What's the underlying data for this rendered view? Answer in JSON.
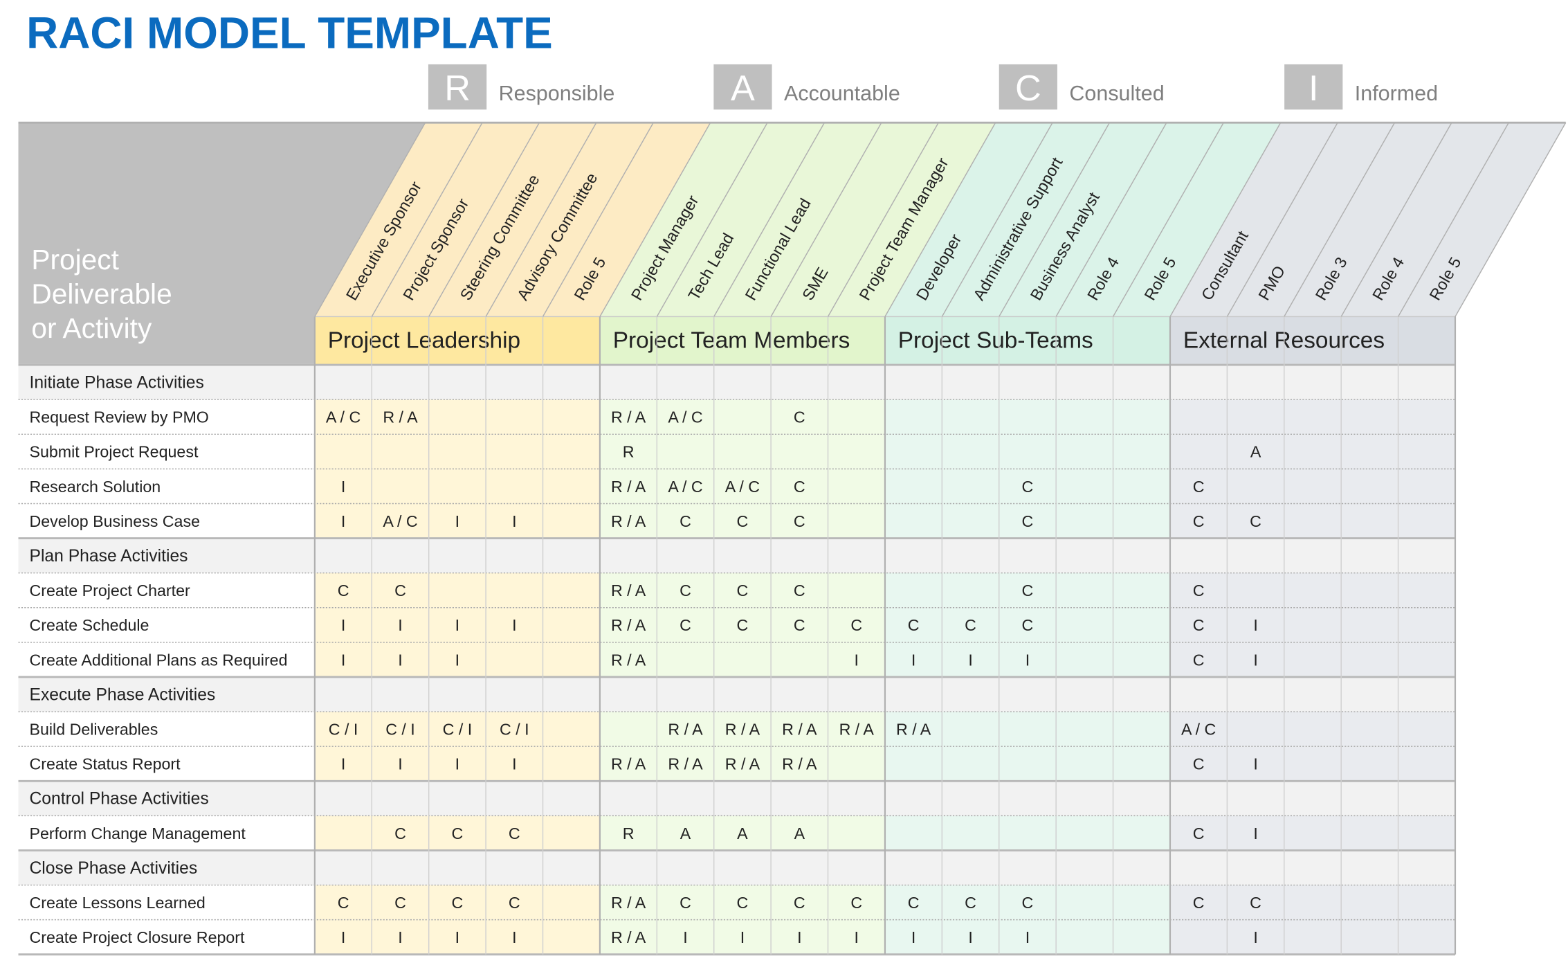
{
  "title": "RACI MODEL TEMPLATE",
  "legend": [
    {
      "letter": "R",
      "label": "Responsible"
    },
    {
      "letter": "A",
      "label": "Accountable"
    },
    {
      "letter": "C",
      "label": "Consulted"
    },
    {
      "letter": "I",
      "label": "Informed"
    }
  ],
  "header_label": [
    "Project",
    "Deliverable",
    "or Activity"
  ],
  "groups": [
    {
      "name": "Project Leadership",
      "roles": [
        "Executive Sponsor",
        "Project Sponsor",
        "Steering Committee",
        "Advisory Committee",
        "Role 5"
      ]
    },
    {
      "name": "Project Team Members",
      "roles": [
        "Project Manager",
        "Tech Lead",
        "Functional Lead",
        "SME",
        "Project Team Manager"
      ]
    },
    {
      "name": "Project Sub-Teams",
      "roles": [
        "Developer",
        "Administrative Support",
        "Business Analyst",
        "Role 4",
        "Role 5"
      ]
    },
    {
      "name": "External Resources",
      "roles": [
        "Consultant",
        "PMO",
        "Role 3",
        "Role 4",
        "Role 5"
      ]
    }
  ],
  "sections": [
    {
      "name": "Initiate Phase Activities",
      "rows": [
        {
          "task": "Request Review by PMO",
          "cells": [
            "A / C",
            "R / A",
            null,
            null,
            null,
            "R / A",
            "A / C",
            null,
            "C",
            null,
            null,
            null,
            null,
            null,
            null,
            null,
            null,
            null,
            null,
            null
          ]
        },
        {
          "task": "Submit Project Request",
          "cells": [
            null,
            null,
            null,
            null,
            null,
            "R",
            null,
            null,
            null,
            null,
            null,
            null,
            null,
            null,
            null,
            null,
            "A",
            null,
            null,
            null
          ]
        },
        {
          "task": "Research Solution",
          "cells": [
            "I",
            null,
            null,
            null,
            null,
            "R / A",
            "A / C",
            "A / C",
            "C",
            null,
            null,
            null,
            "C",
            null,
            null,
            "C",
            null,
            null,
            null,
            null
          ]
        },
        {
          "task": "Develop Business Case",
          "cells": [
            "I",
            "A / C",
            "I",
            "I",
            null,
            "R / A",
            "C",
            "C",
            "C",
            null,
            null,
            null,
            "C",
            null,
            null,
            "C",
            "C",
            null,
            null,
            null
          ]
        }
      ]
    },
    {
      "name": "Plan Phase Activities",
      "rows": [
        {
          "task": "Create Project Charter",
          "cells": [
            "C",
            "C",
            null,
            null,
            null,
            "R / A",
            "C",
            "C",
            "C",
            null,
            null,
            null,
            "C",
            null,
            null,
            "C",
            null,
            null,
            null,
            null
          ]
        },
        {
          "task": "Create Schedule",
          "cells": [
            "I",
            "I",
            "I",
            "I",
            null,
            "R / A",
            "C",
            "C",
            "C",
            "C",
            "C",
            "C",
            "C",
            null,
            null,
            "C",
            "I",
            null,
            null,
            null
          ]
        },
        {
          "task": "Create Additional Plans as Required",
          "cells": [
            "I",
            "I",
            "I",
            null,
            null,
            "R / A",
            null,
            null,
            null,
            "I",
            "I",
            "I",
            "I",
            null,
            null,
            "C",
            "I",
            null,
            null,
            null
          ]
        }
      ]
    },
    {
      "name": "Execute Phase Activities",
      "rows": [
        {
          "task": "Build Deliverables",
          "cells": [
            "C / I",
            "C / I",
            "C / I",
            "C / I",
            null,
            null,
            "R / A",
            "R / A",
            "R / A",
            "R / A",
            "R / A",
            null,
            null,
            null,
            null,
            "A / C",
            null,
            null,
            null,
            null
          ]
        },
        {
          "task": "Create Status Report",
          "cells": [
            "I",
            "I",
            "I",
            "I",
            null,
            "R / A",
            "R / A",
            "R / A",
            "R / A",
            null,
            null,
            null,
            null,
            null,
            null,
            "C",
            "I",
            null,
            null,
            null
          ]
        }
      ]
    },
    {
      "name": "Control Phase Activities",
      "rows": [
        {
          "task": "Perform Change Management",
          "cells": [
            null,
            "C",
            "C",
            "C",
            null,
            "R",
            "A",
            "A",
            "A",
            null,
            null,
            null,
            null,
            null,
            null,
            "C",
            "I",
            null,
            null,
            null
          ]
        }
      ]
    },
    {
      "name": "Close Phase Activities",
      "rows": [
        {
          "task": "Create Lessons Learned",
          "cells": [
            "C",
            "C",
            "C",
            "C",
            null,
            "R / A",
            "C",
            "C",
            "C",
            "C",
            "C",
            "C",
            "C",
            null,
            null,
            "C",
            "C",
            null,
            null,
            null
          ]
        },
        {
          "task": "Create Project Closure Report",
          "cells": [
            "I",
            "I",
            "I",
            "I",
            null,
            "R / A",
            "I",
            "I",
            "I",
            "I",
            "I",
            "I",
            "I",
            null,
            null,
            null,
            "I",
            null,
            null,
            null
          ]
        }
      ]
    }
  ]
}
